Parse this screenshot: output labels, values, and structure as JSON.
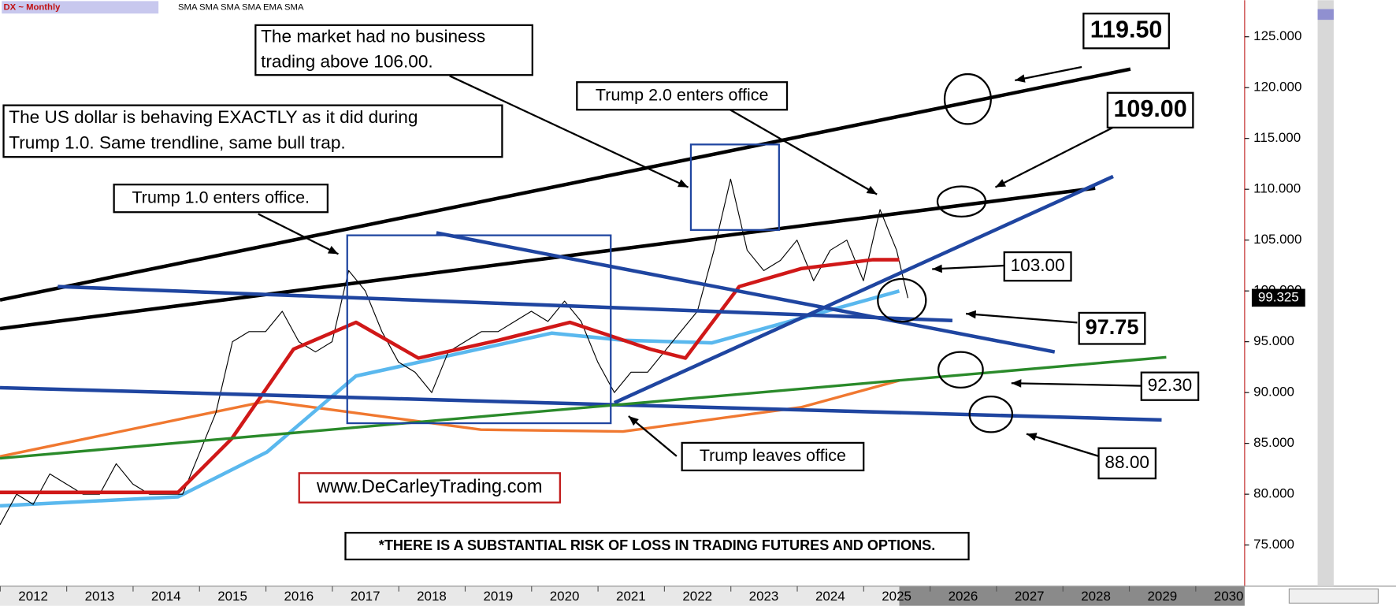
{
  "chart_data": {
    "type": "line",
    "title": "DX ~ Monthly",
    "indicators": "SMA SMA SMA SMA EMA SMA",
    "xlim": [
      2011.5,
      2030.24
    ],
    "ylim": [
      70.95,
      128.6
    ],
    "xticks": [
      2012,
      2013,
      2014,
      2015,
      2016,
      2017,
      2018,
      2019,
      2020,
      2021,
      2022,
      2023,
      2024,
      2025,
      2026,
      2027,
      2028,
      2029,
      2030
    ],
    "yticks": [
      {
        "value": 75,
        "label": "75.000"
      },
      {
        "value": 80,
        "label": "80.000"
      },
      {
        "value": 85,
        "label": "85.000"
      },
      {
        "value": 90,
        "label": "90.000"
      },
      {
        "value": 95,
        "label": "95.000"
      },
      {
        "value": 100,
        "label": "100.000"
      },
      {
        "value": 105,
        "label": "105.000"
      },
      {
        "value": 110,
        "label": "110.000"
      },
      {
        "value": 115,
        "label": "115.000"
      },
      {
        "value": 120,
        "label": "120.000"
      },
      {
        "value": 125,
        "label": "125.000"
      }
    ],
    "last_price": 99.325,
    "series": [
      {
        "color": "#f07830",
        "width": 3,
        "x": [
          2011.5,
          2015.52,
          2018.74,
          2020.88,
          2023.56,
          2025.04
        ],
        "values": [
          83.71,
          89.16,
          86.35,
          86.17,
          88.55,
          91.19
        ]
      },
      {
        "color": "#5ab8ee",
        "width": 4,
        "x": [
          2011.5,
          2014.18,
          2015.52,
          2016.86,
          2019.81,
          2020.88,
          2022.22,
          2025.04
        ],
        "values": [
          78.86,
          79.74,
          84.15,
          91.63,
          95.85,
          95.15,
          94.89,
          99.99
        ]
      },
      {
        "color": "#000000",
        "width": 1,
        "x": [
          2011.5,
          2011.75,
          2012,
          2012.25,
          2012.5,
          2012.75,
          2013,
          2013.25,
          2013.5,
          2013.75,
          2014,
          2014.25,
          2014.5,
          2014.75,
          2015,
          2015.25,
          2015.5,
          2015.75,
          2016,
          2016.25,
          2016.5,
          2016.75,
          2017,
          2017.25,
          2017.5,
          2017.75,
          2018,
          2018.25,
          2018.5,
          2018.75,
          2019,
          2019.25,
          2019.5,
          2019.75,
          2020,
          2020.25,
          2020.5,
          2020.75,
          2021,
          2021.25,
          2021.5,
          2021.75,
          2022,
          2022.25,
          2022.5,
          2022.75,
          2023,
          2023.25,
          2023.5,
          2023.75,
          2024,
          2024.25,
          2024.5,
          2024.75,
          2025,
          2025.17
        ],
        "values": [
          77,
          80,
          79,
          82,
          81,
          80,
          80,
          83,
          81,
          80,
          80,
          80,
          84,
          88,
          95,
          96,
          96,
          98,
          95,
          94,
          95,
          102,
          100,
          96,
          93,
          92,
          90,
          94,
          95,
          96,
          96,
          97,
          98,
          97,
          99,
          97,
          93,
          90,
          92,
          92,
          94,
          96,
          98,
          104,
          111,
          104,
          102,
          103,
          105,
          101,
          104,
          105,
          101,
          108,
          104,
          99.3
        ]
      },
      {
        "color": "#d01818",
        "width": 4,
        "x": [
          2011.5,
          2014.18,
          2014.99,
          2015.92,
          2016.86,
          2017.8,
          2019.01,
          2020.08,
          2021.29,
          2021.82,
          2022.63,
          2023.56,
          2024.64,
          2025.04
        ],
        "values": [
          80.18,
          80.18,
          85.47,
          94.27,
          96.91,
          93.39,
          95.15,
          96.91,
          94.27,
          93.39,
          100.43,
          102.19,
          103.07,
          103.07
        ]
      },
      {
        "color": "#000000",
        "width": 4,
        "x": [
          2011.5,
          2028.52
        ],
        "values": [
          99.11,
          121.82
        ]
      },
      {
        "color": "#000000",
        "width": 4,
        "x": [
          2011.5,
          2027.99
        ],
        "values": [
          96.29,
          110.11
        ]
      },
      {
        "color": "#1f45a0",
        "width": 4,
        "x": [
          2020.75,
          2028.26
        ],
        "values": [
          89.0,
          111.26
        ]
      },
      {
        "color": "#1f45a0",
        "width": 4,
        "x": [
          2012.37,
          2025.84
        ],
        "values": [
          100.43,
          97.09
        ]
      },
      {
        "color": "#1f45a0",
        "width": 4,
        "x": [
          2018.07,
          2027.38
        ],
        "values": [
          105.71,
          94.0
        ]
      },
      {
        "color": "#1f45a0",
        "width": 4,
        "x": [
          2011.5,
          2028.99
        ],
        "values": [
          90.48,
          87.31
        ]
      },
      {
        "color": "#2a8a2a",
        "width": 3,
        "x": [
          2011.5,
          2029.06
        ],
        "values": [
          83.53,
          93.48
        ]
      }
    ],
    "annotations": [
      {
        "lines": [
          "The market had no business",
          "trading above 106.00."
        ]
      },
      {
        "lines": [
          "The US dollar is behaving EXACTLY as it did during",
          "Trump 1.0. Same trendline, same bull trap."
        ]
      },
      {
        "lines": [
          "Trump 2.0 enters office"
        ]
      },
      {
        "lines": [
          "Trump 1.0 enters office."
        ]
      },
      {
        "lines": [
          "Trump leaves office"
        ]
      },
      {
        "lines": [
          "www.DeCarleyTrading.com"
        ]
      },
      {
        "lines": [
          "*THERE IS A SUBSTANTIAL RISK OF LOSS IN TRADING FUTURES AND OPTIONS."
        ]
      },
      {
        "lines": [
          "119.50"
        ]
      },
      {
        "lines": [
          "109.00"
        ]
      },
      {
        "lines": [
          "103.00"
        ]
      },
      {
        "lines": [
          "97.75"
        ]
      },
      {
        "lines": [
          "92.30"
        ]
      },
      {
        "lines": [
          "88.00"
        ]
      }
    ]
  }
}
